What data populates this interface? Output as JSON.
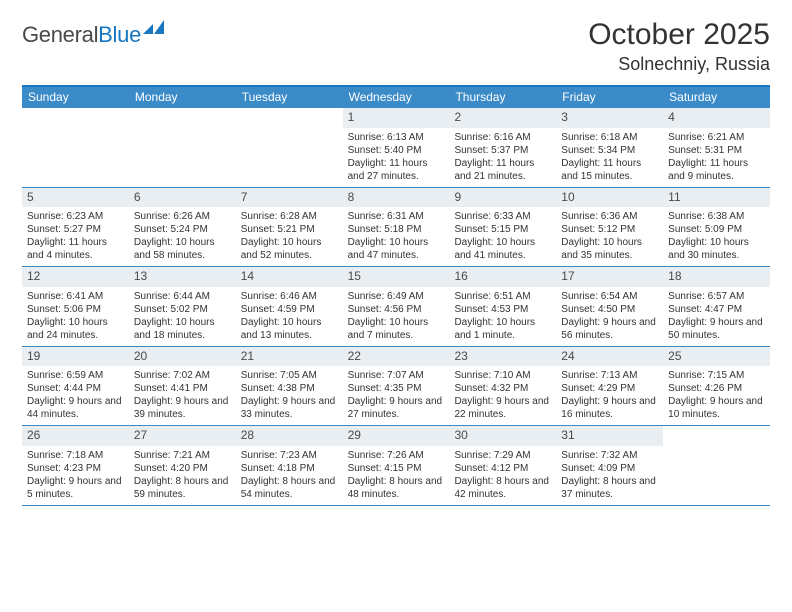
{
  "logo": {
    "text1": "General",
    "text2": "Blue"
  },
  "title": "October 2025",
  "location": "Solnechniy, Russia",
  "weekdays": [
    "Sunday",
    "Monday",
    "Tuesday",
    "Wednesday",
    "Thursday",
    "Friday",
    "Saturday"
  ],
  "colors": {
    "header_bar": "#3b8bc9",
    "header_border": "#1976c1",
    "daynum_bg": "#e8eef2",
    "text": "#333333",
    "logo_gray": "#4a4a4a",
    "logo_blue": "#1976c1"
  },
  "weeks": [
    [
      {
        "n": "",
        "sr": "",
        "ss": "",
        "dl": ""
      },
      {
        "n": "",
        "sr": "",
        "ss": "",
        "dl": ""
      },
      {
        "n": "",
        "sr": "",
        "ss": "",
        "dl": ""
      },
      {
        "n": "1",
        "sr": "Sunrise: 6:13 AM",
        "ss": "Sunset: 5:40 PM",
        "dl": "Daylight: 11 hours and 27 minutes."
      },
      {
        "n": "2",
        "sr": "Sunrise: 6:16 AM",
        "ss": "Sunset: 5:37 PM",
        "dl": "Daylight: 11 hours and 21 minutes."
      },
      {
        "n": "3",
        "sr": "Sunrise: 6:18 AM",
        "ss": "Sunset: 5:34 PM",
        "dl": "Daylight: 11 hours and 15 minutes."
      },
      {
        "n": "4",
        "sr": "Sunrise: 6:21 AM",
        "ss": "Sunset: 5:31 PM",
        "dl": "Daylight: 11 hours and 9 minutes."
      }
    ],
    [
      {
        "n": "5",
        "sr": "Sunrise: 6:23 AM",
        "ss": "Sunset: 5:27 PM",
        "dl": "Daylight: 11 hours and 4 minutes."
      },
      {
        "n": "6",
        "sr": "Sunrise: 6:26 AM",
        "ss": "Sunset: 5:24 PM",
        "dl": "Daylight: 10 hours and 58 minutes."
      },
      {
        "n": "7",
        "sr": "Sunrise: 6:28 AM",
        "ss": "Sunset: 5:21 PM",
        "dl": "Daylight: 10 hours and 52 minutes."
      },
      {
        "n": "8",
        "sr": "Sunrise: 6:31 AM",
        "ss": "Sunset: 5:18 PM",
        "dl": "Daylight: 10 hours and 47 minutes."
      },
      {
        "n": "9",
        "sr": "Sunrise: 6:33 AM",
        "ss": "Sunset: 5:15 PM",
        "dl": "Daylight: 10 hours and 41 minutes."
      },
      {
        "n": "10",
        "sr": "Sunrise: 6:36 AM",
        "ss": "Sunset: 5:12 PM",
        "dl": "Daylight: 10 hours and 35 minutes."
      },
      {
        "n": "11",
        "sr": "Sunrise: 6:38 AM",
        "ss": "Sunset: 5:09 PM",
        "dl": "Daylight: 10 hours and 30 minutes."
      }
    ],
    [
      {
        "n": "12",
        "sr": "Sunrise: 6:41 AM",
        "ss": "Sunset: 5:06 PM",
        "dl": "Daylight: 10 hours and 24 minutes."
      },
      {
        "n": "13",
        "sr": "Sunrise: 6:44 AM",
        "ss": "Sunset: 5:02 PM",
        "dl": "Daylight: 10 hours and 18 minutes."
      },
      {
        "n": "14",
        "sr": "Sunrise: 6:46 AM",
        "ss": "Sunset: 4:59 PM",
        "dl": "Daylight: 10 hours and 13 minutes."
      },
      {
        "n": "15",
        "sr": "Sunrise: 6:49 AM",
        "ss": "Sunset: 4:56 PM",
        "dl": "Daylight: 10 hours and 7 minutes."
      },
      {
        "n": "16",
        "sr": "Sunrise: 6:51 AM",
        "ss": "Sunset: 4:53 PM",
        "dl": "Daylight: 10 hours and 1 minute."
      },
      {
        "n": "17",
        "sr": "Sunrise: 6:54 AM",
        "ss": "Sunset: 4:50 PM",
        "dl": "Daylight: 9 hours and 56 minutes."
      },
      {
        "n": "18",
        "sr": "Sunrise: 6:57 AM",
        "ss": "Sunset: 4:47 PM",
        "dl": "Daylight: 9 hours and 50 minutes."
      }
    ],
    [
      {
        "n": "19",
        "sr": "Sunrise: 6:59 AM",
        "ss": "Sunset: 4:44 PM",
        "dl": "Daylight: 9 hours and 44 minutes."
      },
      {
        "n": "20",
        "sr": "Sunrise: 7:02 AM",
        "ss": "Sunset: 4:41 PM",
        "dl": "Daylight: 9 hours and 39 minutes."
      },
      {
        "n": "21",
        "sr": "Sunrise: 7:05 AM",
        "ss": "Sunset: 4:38 PM",
        "dl": "Daylight: 9 hours and 33 minutes."
      },
      {
        "n": "22",
        "sr": "Sunrise: 7:07 AM",
        "ss": "Sunset: 4:35 PM",
        "dl": "Daylight: 9 hours and 27 minutes."
      },
      {
        "n": "23",
        "sr": "Sunrise: 7:10 AM",
        "ss": "Sunset: 4:32 PM",
        "dl": "Daylight: 9 hours and 22 minutes."
      },
      {
        "n": "24",
        "sr": "Sunrise: 7:13 AM",
        "ss": "Sunset: 4:29 PM",
        "dl": "Daylight: 9 hours and 16 minutes."
      },
      {
        "n": "25",
        "sr": "Sunrise: 7:15 AM",
        "ss": "Sunset: 4:26 PM",
        "dl": "Daylight: 9 hours and 10 minutes."
      }
    ],
    [
      {
        "n": "26",
        "sr": "Sunrise: 7:18 AM",
        "ss": "Sunset: 4:23 PM",
        "dl": "Daylight: 9 hours and 5 minutes."
      },
      {
        "n": "27",
        "sr": "Sunrise: 7:21 AM",
        "ss": "Sunset: 4:20 PM",
        "dl": "Daylight: 8 hours and 59 minutes."
      },
      {
        "n": "28",
        "sr": "Sunrise: 7:23 AM",
        "ss": "Sunset: 4:18 PM",
        "dl": "Daylight: 8 hours and 54 minutes."
      },
      {
        "n": "29",
        "sr": "Sunrise: 7:26 AM",
        "ss": "Sunset: 4:15 PM",
        "dl": "Daylight: 8 hours and 48 minutes."
      },
      {
        "n": "30",
        "sr": "Sunrise: 7:29 AM",
        "ss": "Sunset: 4:12 PM",
        "dl": "Daylight: 8 hours and 42 minutes."
      },
      {
        "n": "31",
        "sr": "Sunrise: 7:32 AM",
        "ss": "Sunset: 4:09 PM",
        "dl": "Daylight: 8 hours and 37 minutes."
      },
      {
        "n": "",
        "sr": "",
        "ss": "",
        "dl": ""
      }
    ]
  ]
}
